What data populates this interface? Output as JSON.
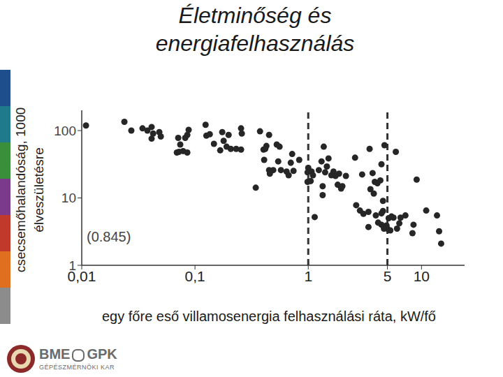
{
  "chart_data": {
    "type": "scatter",
    "title": "Életminőség és energiafelhasználás",
    "x_label": "egy főre eső villamosenergia felhasználási ráta, kW/fő",
    "y_label": "csecsemőhalandóság, 1000 élveszületésre",
    "annotations": [
      "(0.845)",
      "BME",
      "GPK",
      "GÉPÉSZMÉRNÖKI KAR"
    ],
    "log": true,
    "grid": false,
    "color": "#262626",
    "marker": "circle",
    "vlines": [
      1,
      5
    ],
    "xlim": [
      0.01,
      24
    ],
    "ylim": [
      1,
      200
    ],
    "xticks": [
      {
        "value": 0.01,
        "label": "0,01"
      },
      {
        "value": 0.1,
        "label": "0,1"
      },
      1,
      5,
      10
    ],
    "yticks": [
      1,
      10,
      100
    ],
    "x": [
      0.0109,
      0.0238,
      0.0274,
      0.0344,
      0.038,
      0.0414,
      0.0427,
      0.0414,
      0.0499,
      0.0484,
      0.0711,
      0.0741,
      0.0855,
      0.082,
      0.0879,
      0.0721,
      0.0785,
      0.0855,
      0.0692,
      0.124,
      0.126,
      0.135,
      0.147,
      0.174,
      0.167,
      0.179,
      0.198,
      0.19,
      0.207,
      0.231,
      0.255,
      0.255,
      0.259,
      0.375,
      0.403,
      0.427,
      0.417,
      0.451,
      0.408,
      0.527,
      0.558,
      0.344,
      0.451,
      0.458,
      0.491,
      0.543,
      0.574,
      0.644,
      0.721,
      0.701,
      0.671,
      0.741,
      0.832,
      1.0,
      0.986,
      0.986,
      1.07,
      1.1,
      1.05,
      1.14,
      1.24,
      1.31,
      1.37,
      1.41,
      1.51,
      1.46,
      1.6,
      1.67,
      1.74,
      1.87,
      1.82,
      1.95,
      2.0,
      2.15,
      1.34,
      1.34,
      2.59,
      2.65,
      2.86,
      3.07,
      3.4,
      2.99,
      3.48,
      3.54,
      3.7,
      3.87,
      3.79,
      4.08,
      4.33,
      4.43,
      4.71,
      4.57,
      4.57,
      4.43,
      3.4,
      4.14,
      4.43,
      4.66,
      4.91,
      4.98,
      5.13,
      5.43,
      5.66,
      5.93,
      6.08,
      6.37,
      6.53,
      7.21,
      8.32,
      8.5,
      9.06,
      11.0,
      13.7,
      14.3,
      14.9,
      5.3,
      3.95
    ],
    "values": [
      119,
      135,
      100,
      108,
      100,
      113,
      90.5,
      75.9,
      81.8,
      95,
      77.8,
      62.1,
      86.1,
      77.8,
      102.5,
      48.4,
      49.6,
      47.2,
      47.2,
      122,
      84,
      88.2,
      63.7,
      95,
      50.9,
      70.5,
      86.1,
      57.7,
      53.5,
      53.5,
      52.2,
      108,
      90.5,
      97.5,
      52.2,
      59.1,
      53.5,
      86.1,
      36.7,
      62.1,
      57.7,
      14.2,
      25.9,
      22.9,
      25.9,
      34.9,
      25.9,
      24.6,
      44.9,
      33.3,
      21.7,
      25.2,
      36.7,
      27.9,
      24.0,
      17.3,
      24.6,
      21.7,
      17.8,
      5.2,
      25.9,
      34.9,
      57.7,
      24.0,
      38.6,
      29.3,
      21.7,
      24.6,
      21.2,
      22.9,
      15.7,
      13.8,
      14.9,
      21.2,
      14.9,
      11.0,
      39.6,
      7.8,
      6.5,
      5.8,
      6.2,
      22.3,
      53.5,
      13.5,
      23.4,
      17.3,
      11.6,
      16.5,
      18.2,
      31.6,
      60.7,
      9.05,
      6.4,
      5.9,
      3.7,
      4.3,
      4.0,
      3.5,
      3.9,
      3.5,
      5.0,
      5.3,
      5.1,
      48.4,
      3.5,
      4.2,
      5.1,
      5.5,
      3.0,
      4.0,
      18.7,
      6.5,
      5.5,
      3.2,
      2.1,
      3.3,
      5.5
    ]
  }
}
